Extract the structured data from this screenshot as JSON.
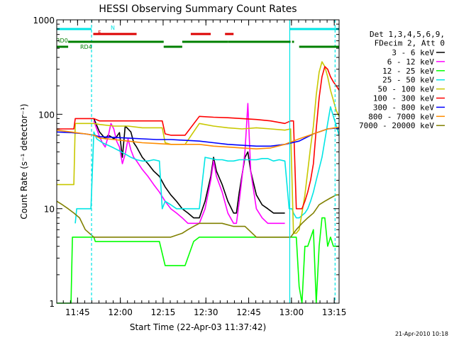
{
  "chart_data": {
    "type": "line",
    "title": "HESSI Observing Summary Count Rates",
    "xlabel": "Start Time (22-Apr-03 11:37:42)",
    "ylabel": "Count Rate (s⁻¹ detector⁻¹)",
    "x_unit": "minutes after 11:37:42",
    "xlim": [
      0,
      99
    ],
    "ylim": [
      1,
      1000
    ],
    "yscale": "log",
    "x_ticks": [
      {
        "label": "11:45",
        "x": 7.3
      },
      {
        "label": "12:00",
        "x": 22.3
      },
      {
        "label": "12:15",
        "x": 37.3
      },
      {
        "label": "12:30",
        "x": 52.3
      },
      {
        "label": "12:45",
        "x": 67.3
      },
      {
        "label": "13:00",
        "x": 82.3
      },
      {
        "label": "13:15",
        "x": 97.3
      }
    ],
    "y_ticks": [
      {
        "label": "1",
        "y": 1
      },
      {
        "label": "10",
        "y": 10
      },
      {
        "label": "100",
        "y": 100
      },
      {
        "label": "1000",
        "y": 1000
      }
    ],
    "legend": {
      "position": "right",
      "header": [
        "Det 1,3,4,5,6,9,",
        "FDecim 2, Att 0"
      ]
    },
    "series": [
      {
        "name": "3 - 6 keV",
        "color": "#000000",
        "x": [
          11.5,
          13,
          15,
          16,
          17,
          18,
          19,
          20,
          21,
          22,
          23,
          24,
          25,
          26,
          27,
          28,
          30,
          32,
          34,
          36,
          38,
          40,
          42,
          44,
          46,
          48,
          50,
          52,
          54,
          55,
          56,
          58,
          60,
          62,
          63,
          64,
          66,
          67,
          68,
          70,
          72,
          74,
          76,
          78,
          80,
          81.5
        ],
        "y": [
          null,
          90,
          65,
          60,
          55,
          60,
          58,
          55,
          58,
          64,
          35,
          75,
          70,
          65,
          50,
          45,
          35,
          30,
          25,
          22,
          17,
          14,
          12,
          10,
          9,
          8,
          8,
          12,
          22,
          35,
          25,
          18,
          12,
          9,
          9,
          15,
          35,
          40,
          25,
          14,
          11,
          10,
          9,
          9,
          9,
          null
        ]
      },
      {
        "name": "6 - 12 keV",
        "color": "#ff00ff",
        "x": [
          11.5,
          13,
          15,
          16,
          17,
          18,
          19,
          20,
          21,
          22,
          23,
          24,
          25,
          26,
          27,
          28,
          30,
          32,
          34,
          36,
          38,
          40,
          42,
          44,
          46,
          48,
          50,
          52,
          54,
          55,
          56,
          58,
          60,
          62,
          63,
          64,
          66,
          67,
          68,
          70,
          72,
          74,
          76,
          78,
          80,
          81.5
        ],
        "y": [
          null,
          85,
          58,
          50,
          45,
          58,
          80,
          70,
          52,
          45,
          30,
          38,
          55,
          42,
          35,
          32,
          26,
          22,
          18,
          15,
          12,
          10,
          9,
          8,
          7,
          7,
          7,
          10,
          20,
          32,
          22,
          15,
          9,
          7,
          7,
          12,
          40,
          130,
          25,
          10,
          8,
          7,
          7,
          7,
          7,
          null
        ]
      },
      {
        "name": "12 - 25 keV",
        "color": "#00ff00",
        "x": [
          0,
          5,
          5.5,
          10,
          13,
          13.5,
          20,
          23,
          25,
          28,
          32,
          36,
          38,
          40,
          42,
          45,
          48,
          50,
          52,
          55,
          58,
          60,
          62,
          64,
          66,
          68,
          70,
          72,
          74,
          76,
          78,
          80,
          82,
          84,
          85,
          86,
          87,
          88,
          90,
          91,
          92,
          93,
          94,
          95,
          96,
          97,
          98,
          99
        ],
        "y": [
          1,
          1,
          5,
          5,
          5,
          4.5,
          4.5,
          4.5,
          4.5,
          4.5,
          4.5,
          4.5,
          2.5,
          2.5,
          2.5,
          2.5,
          4.5,
          5,
          5,
          5,
          5,
          5,
          5,
          5,
          5,
          5,
          5,
          5,
          5,
          5,
          5,
          5,
          5,
          5,
          1.5,
          1,
          4,
          4,
          6,
          1,
          4,
          8,
          8,
          4,
          5,
          4,
          4,
          4
        ]
      },
      {
        "name": "25 - 50 keV",
        "color": "#00e5e5",
        "x": [
          6.5,
          7,
          12,
          13,
          14,
          16,
          18,
          20,
          22,
          24,
          26,
          28,
          30,
          32,
          34,
          36,
          37,
          38,
          40,
          42,
          44,
          46,
          48,
          50,
          52,
          54,
          56,
          58,
          60,
          62,
          64,
          66,
          68,
          70,
          72,
          74,
          76,
          78,
          80,
          81.5,
          82.5,
          83,
          84,
          85,
          87,
          88,
          89,
          90,
          91,
          93,
          95,
          96,
          97,
          99
        ],
        "y": [
          7,
          10,
          10,
          65,
          55,
          50,
          47,
          44,
          41,
          38,
          35,
          33,
          32,
          32,
          33,
          32,
          10,
          12,
          11,
          10,
          10,
          10,
          10,
          10,
          35,
          34,
          33,
          33,
          32,
          32,
          33,
          33,
          33,
          33,
          34,
          34,
          32,
          33,
          32,
          10,
          10,
          9,
          8,
          8,
          9,
          10,
          12,
          15,
          20,
          35,
          80,
          120,
          95,
          60
        ]
      },
      {
        "name": "50 - 100 keV",
        "color": "#c8c800",
        "x": [
          0,
          6,
          6.5,
          13,
          15,
          20,
          25,
          30,
          35,
          37,
          38,
          40,
          45,
          50,
          55,
          60,
          65,
          70,
          75,
          80,
          82,
          83,
          84,
          85,
          86,
          87,
          88,
          89,
          90,
          91,
          92,
          93,
          94,
          95,
          96,
          97,
          98,
          99
        ],
        "y": [
          18,
          18,
          80,
          80,
          78,
          75,
          75,
          72,
          72,
          72,
          50,
          48,
          48,
          80,
          75,
          72,
          70,
          72,
          70,
          68,
          70,
          5.5,
          5.5,
          6,
          9,
          14,
          25,
          45,
          75,
          160,
          280,
          360,
          320,
          250,
          180,
          140,
          110,
          95
        ]
      },
      {
        "name": "100 - 300 keV",
        "color": "#ff0000",
        "x": [
          0,
          6,
          6.5,
          10,
          13,
          15,
          20,
          25,
          30,
          35,
          37,
          38,
          40,
          45,
          50,
          55,
          60,
          65,
          70,
          75,
          80,
          82,
          83,
          84,
          85,
          86,
          87,
          88,
          89,
          90,
          91,
          92,
          93,
          94,
          95,
          96,
          97,
          98,
          99
        ],
        "y": [
          70,
          70,
          90,
          90,
          90,
          85,
          85,
          85,
          85,
          85,
          85,
          62,
          60,
          60,
          95,
          93,
          92,
          90,
          88,
          85,
          80,
          85,
          85,
          10,
          10,
          10,
          12,
          15,
          20,
          30,
          70,
          150,
          250,
          320,
          300,
          250,
          220,
          200,
          180
        ]
      },
      {
        "name": "300 - 800 keV",
        "color": "#0000ff",
        "x": [
          0,
          5,
          10,
          13,
          15,
          20,
          25,
          30,
          35,
          40,
          45,
          50,
          55,
          60,
          65,
          70,
          75,
          80,
          85,
          90,
          95,
          99
        ],
        "y": [
          65,
          64,
          62,
          60,
          58,
          57,
          56,
          55,
          54,
          54,
          53,
          52,
          50,
          48,
          47,
          46,
          46,
          48,
          52,
          62,
          70,
          72
        ]
      },
      {
        "name": "800 - 7000 keV",
        "color": "#ff8c00",
        "x": [
          0,
          5,
          10,
          13,
          15,
          20,
          25,
          30,
          35,
          40,
          45,
          50,
          55,
          60,
          65,
          70,
          75,
          80,
          85,
          90,
          95,
          99
        ],
        "y": [
          68,
          65,
          62,
          60,
          56,
          54,
          52,
          50,
          49,
          48,
          48,
          48,
          46,
          45,
          44,
          43,
          44,
          48,
          55,
          62,
          70,
          73
        ]
      },
      {
        "name": "7000 - 20000 keV",
        "color": "#808000",
        "x": [
          0,
          2,
          4,
          6,
          8,
          10,
          13,
          16,
          20,
          24,
          28,
          32,
          36,
          40,
          44,
          46,
          48,
          50,
          54,
          58,
          62,
          66,
          70,
          74,
          78,
          82,
          84,
          86,
          88,
          90,
          92,
          94,
          96,
          98,
          99
        ],
        "y": [
          12,
          11,
          10,
          9,
          8,
          6,
          5,
          5,
          5,
          5,
          5,
          5,
          5,
          5,
          5.5,
          6,
          6.5,
          7,
          7,
          7,
          6.5,
          6.5,
          5,
          5,
          5,
          5,
          6,
          7,
          8,
          9,
          11,
          12,
          13,
          14,
          14
        ]
      }
    ],
    "attenuator_bars": [
      {
        "label": "N",
        "color": "#00e5e5",
        "segments": [
          [
            0,
            12.2
          ],
          [
            81.7,
            99
          ]
        ]
      },
      {
        "label": "F",
        "color": "#dd0000",
        "segments": [
          [
            12.8,
            28
          ],
          [
            47,
            54
          ],
          [
            59,
            62
          ]
        ]
      },
      {
        "label": "RD0",
        "color": "#008000",
        "segments": [
          [
            4,
            25
          ],
          [
            25,
            37.5
          ],
          [
            44,
            60
          ],
          [
            60,
            82
          ],
          [
            82.5,
            83.2
          ]
        ]
      },
      {
        "label": "RD4",
        "color": "#008000",
        "segments": [
          [
            0,
            4
          ],
          [
            37.5,
            44
          ],
          [
            85,
            99
          ]
        ]
      }
    ],
    "vertical_markers": [
      {
        "x": 12.2,
        "color": "#00e5e5",
        "style": "dashed"
      },
      {
        "x": 81.7,
        "color": "#00e5e5",
        "style": "solid"
      },
      {
        "x": 97.6,
        "color": "#00e5e5",
        "style": "dashed"
      }
    ],
    "footer_text": "21-Apr-2010 10:18"
  }
}
